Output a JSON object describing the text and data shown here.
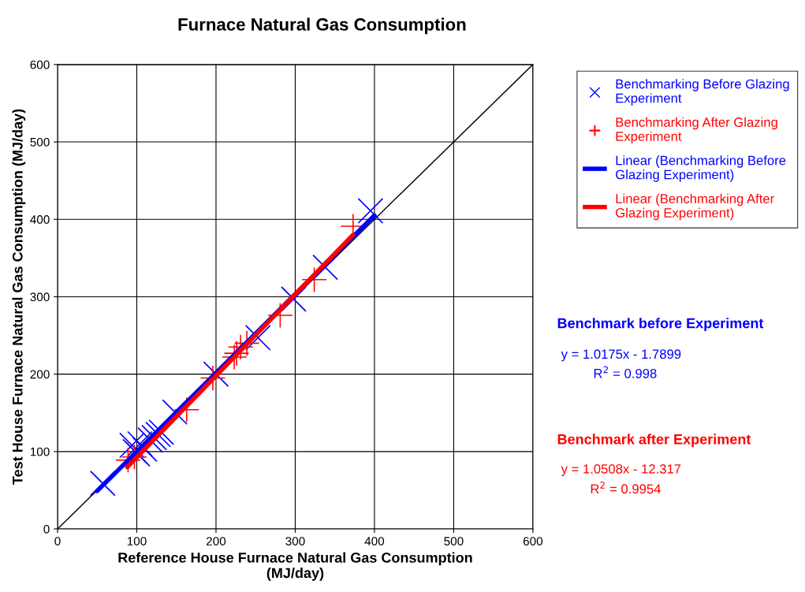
{
  "chart_data": {
    "type": "scatter",
    "title": "Furnace Natural Gas Consumption",
    "xlabel": "Reference House Furnace Natural Gas Consumption\n(MJ/day)",
    "ylabel": "Test House Furnace Natural Gas Consumption (MJ/day)",
    "xlim": [
      0,
      600
    ],
    "ylim": [
      0,
      600
    ],
    "xticks": [
      0,
      100,
      200,
      300,
      400,
      500,
      600
    ],
    "yticks": [
      0,
      100,
      200,
      300,
      400,
      500,
      600
    ],
    "grid": true,
    "legend": "top right",
    "series": [
      {
        "name": "Benchmarking Before Glazing Experiment",
        "marker": "cross",
        "color": "#0000ff",
        "x": [
          57,
          94,
          98,
          101,
          104,
          110,
          117,
          122,
          127,
          131,
          148,
          200,
          253,
          298,
          338,
          395
        ],
        "values": [
          59,
          108,
          100,
          97,
          110,
          103,
          115,
          118,
          122,
          125,
          151,
          200,
          247,
          297,
          338,
          411
        ]
      },
      {
        "name": "Benchmarking After Glazing Experiment",
        "marker": "cross",
        "color": "#ff0000",
        "x": [
          89,
          97,
          163,
          196,
          223,
          226,
          231,
          239,
          281,
          324,
          373
        ],
        "values": [
          89,
          93,
          154,
          195,
          222,
          227,
          235,
          240,
          276,
          322,
          391
        ]
      },
      {
        "name": "Linear (Benchmarking Before Glazing Experiment)",
        "type": "line",
        "color": "#0000ff",
        "x": [
          50,
          400
        ],
        "values": [
          49,
          405
        ]
      },
      {
        "name": "Linear (Benchmarking After Glazing Experiment)",
        "type": "line",
        "color": "#ff0000",
        "x": [
          88,
          373
        ],
        "values": [
          80,
          380
        ]
      },
      {
        "type": "line",
        "color": "#000000",
        "x": [
          0,
          600
        ],
        "values": [
          0,
          600
        ]
      }
    ],
    "annotations": [
      "Benchmark before Experiment",
      "y = 1.0175x - 1.7899",
      "R$^{2}$ = 0.998",
      "Benchmark after Experiment",
      "y = 1.0508x - 12.317",
      "R$^{2}$ = 0.9954"
    ]
  }
}
